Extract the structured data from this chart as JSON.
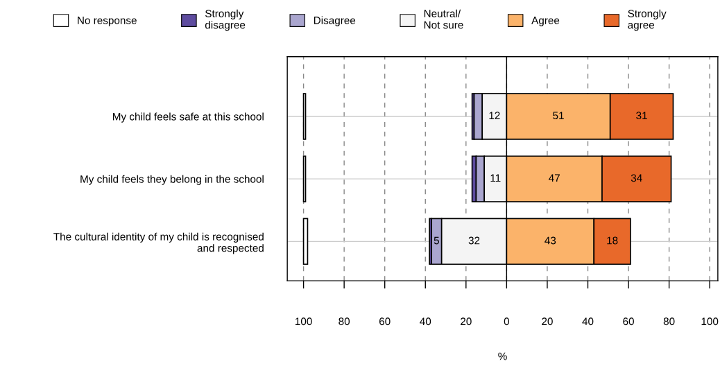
{
  "chart_data": {
    "type": "bar",
    "orientation": "horizontal",
    "xlabel": "%",
    "categories": [
      "My child feels safe at this school",
      "My child feels they belong in the school",
      "The cultural identity of my child is recognised\nand respected"
    ],
    "series": [
      {
        "name": "No response",
        "color": "#ffffff",
        "values": [
          1,
          1,
          2
        ],
        "base": [
          -100,
          -100,
          -100
        ]
      },
      {
        "name": "Strongly\ndisagree",
        "color": "#5e4c9f",
        "values": [
          1,
          2,
          1
        ],
        "base": [
          -17,
          -17,
          -38
        ]
      },
      {
        "name": "Disagree",
        "color": "#aaa6cf",
        "values": [
          4,
          4,
          5
        ],
        "base": [
          -16,
          -15,
          -37
        ],
        "value_labels": [
          null,
          null,
          "5"
        ]
      },
      {
        "name": "Neutral/\nNot sure",
        "color": "#f4f4f4",
        "values": [
          12,
          11,
          32
        ],
        "base": [
          -12,
          -11,
          -32
        ],
        "value_labels": [
          "12",
          "11",
          "32"
        ]
      },
      {
        "name": "Agree",
        "color": "#fbb36a",
        "values": [
          51,
          47,
          43
        ],
        "base": [
          0,
          0,
          0
        ],
        "value_labels": [
          "51",
          "47",
          "43"
        ]
      },
      {
        "name": "Strongly\nagree",
        "color": "#e8692a",
        "values": [
          31,
          34,
          18
        ],
        "base": [
          51,
          47,
          43
        ],
        "value_labels": [
          "31",
          "34",
          "18"
        ]
      }
    ],
    "xlim": [
      -108,
      104
    ],
    "xticks": [
      {
        "value": -100,
        "label": "100"
      },
      {
        "value": -80,
        "label": "80"
      },
      {
        "value": -60,
        "label": "60"
      },
      {
        "value": -40,
        "label": "40"
      },
      {
        "value": -20,
        "label": "20"
      },
      0,
      20,
      40,
      60,
      80,
      100
    ],
    "ref_lines": [
      {
        "axis": "x",
        "value": 0,
        "color": "#000000",
        "line_style": "solid"
      }
    ],
    "grid": true,
    "legend": "top"
  }
}
